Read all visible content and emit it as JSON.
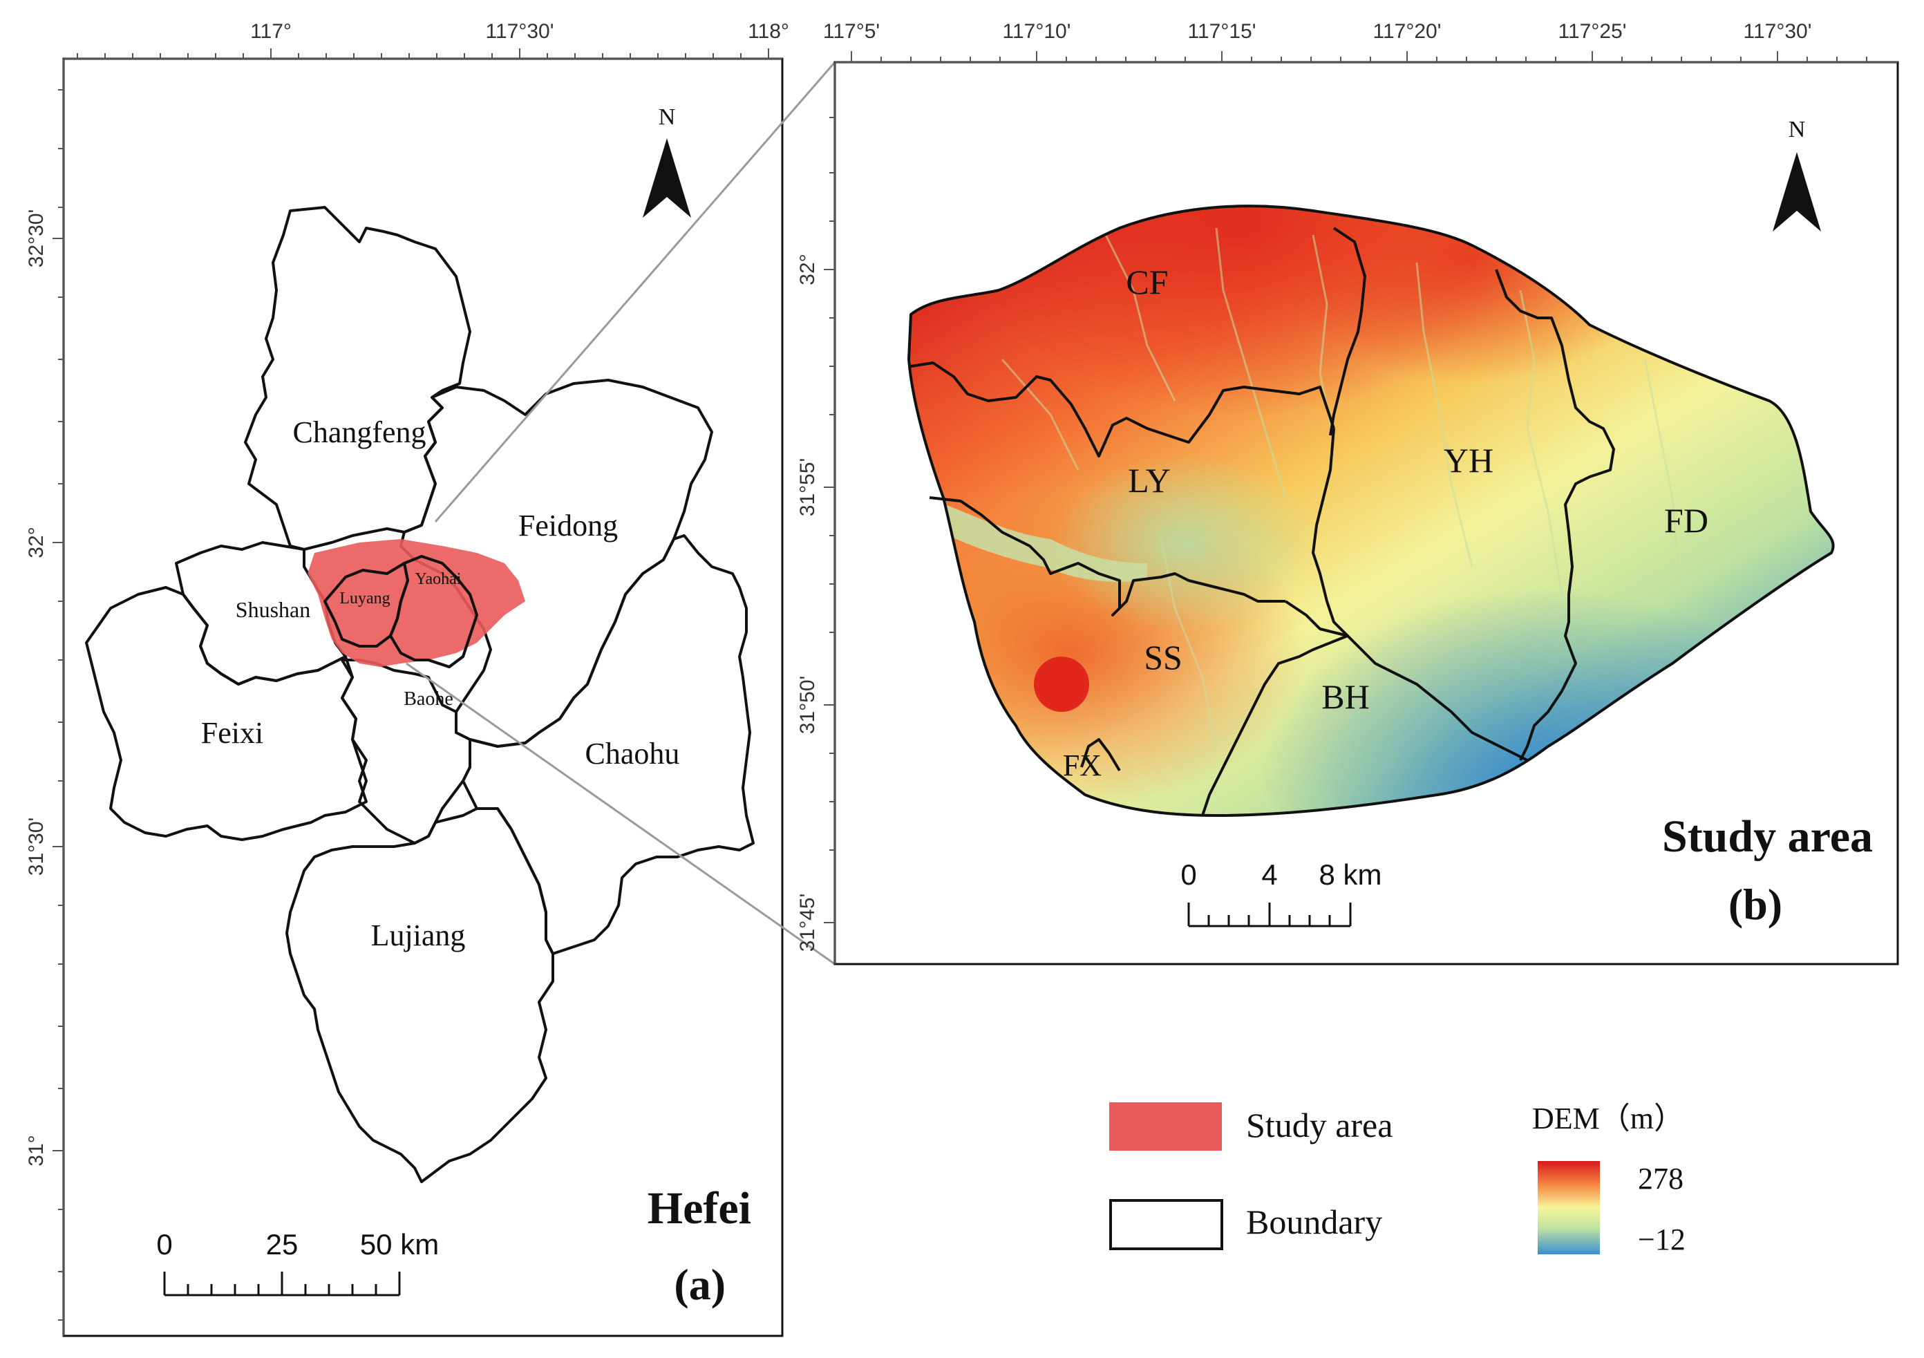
{
  "panel_a": {
    "title": "Hefei",
    "label": "(a)",
    "north": "N",
    "lon_ticks": [
      "117°",
      "117°30'",
      "118°"
    ],
    "lat_ticks": [
      "32°30'",
      "32°",
      "31°30'",
      "31°"
    ],
    "districts": [
      "Changfeng",
      "Feidong",
      "Shushan",
      "Luyang",
      "Yaohai",
      "Feixi",
      "Baohe",
      "Chaohu",
      "Lujiang"
    ],
    "scale_bar": {
      "labels": [
        "0",
        "25",
        "50 km"
      ]
    }
  },
  "panel_b": {
    "title": "Study area",
    "label": "(b)",
    "north": "N",
    "lon_ticks": [
      "117°5'",
      "117°10'",
      "117°15'",
      "117°20'",
      "117°25'",
      "117°30'"
    ],
    "lat_ticks": [
      "32°",
      "31°55'",
      "31°50'",
      "31°45'"
    ],
    "districts": [
      "CF",
      "LY",
      "YH",
      "FD",
      "SS",
      "BH",
      "FX"
    ],
    "scale_bar": {
      "labels": [
        "0",
        "4",
        "8 km"
      ]
    }
  },
  "legend": {
    "study_area": "Study area",
    "boundary": "Boundary",
    "dem_title": "DEM（m）",
    "dem_max": "278",
    "dem_min": "−12"
  },
  "colors": {
    "study_area_fill": "#eb5a5a",
    "dem_high": "#d7191c",
    "dem_mid": "#f7f59a",
    "dem_low": "#3a8fd0",
    "connector_line": "#9a9a9a"
  }
}
